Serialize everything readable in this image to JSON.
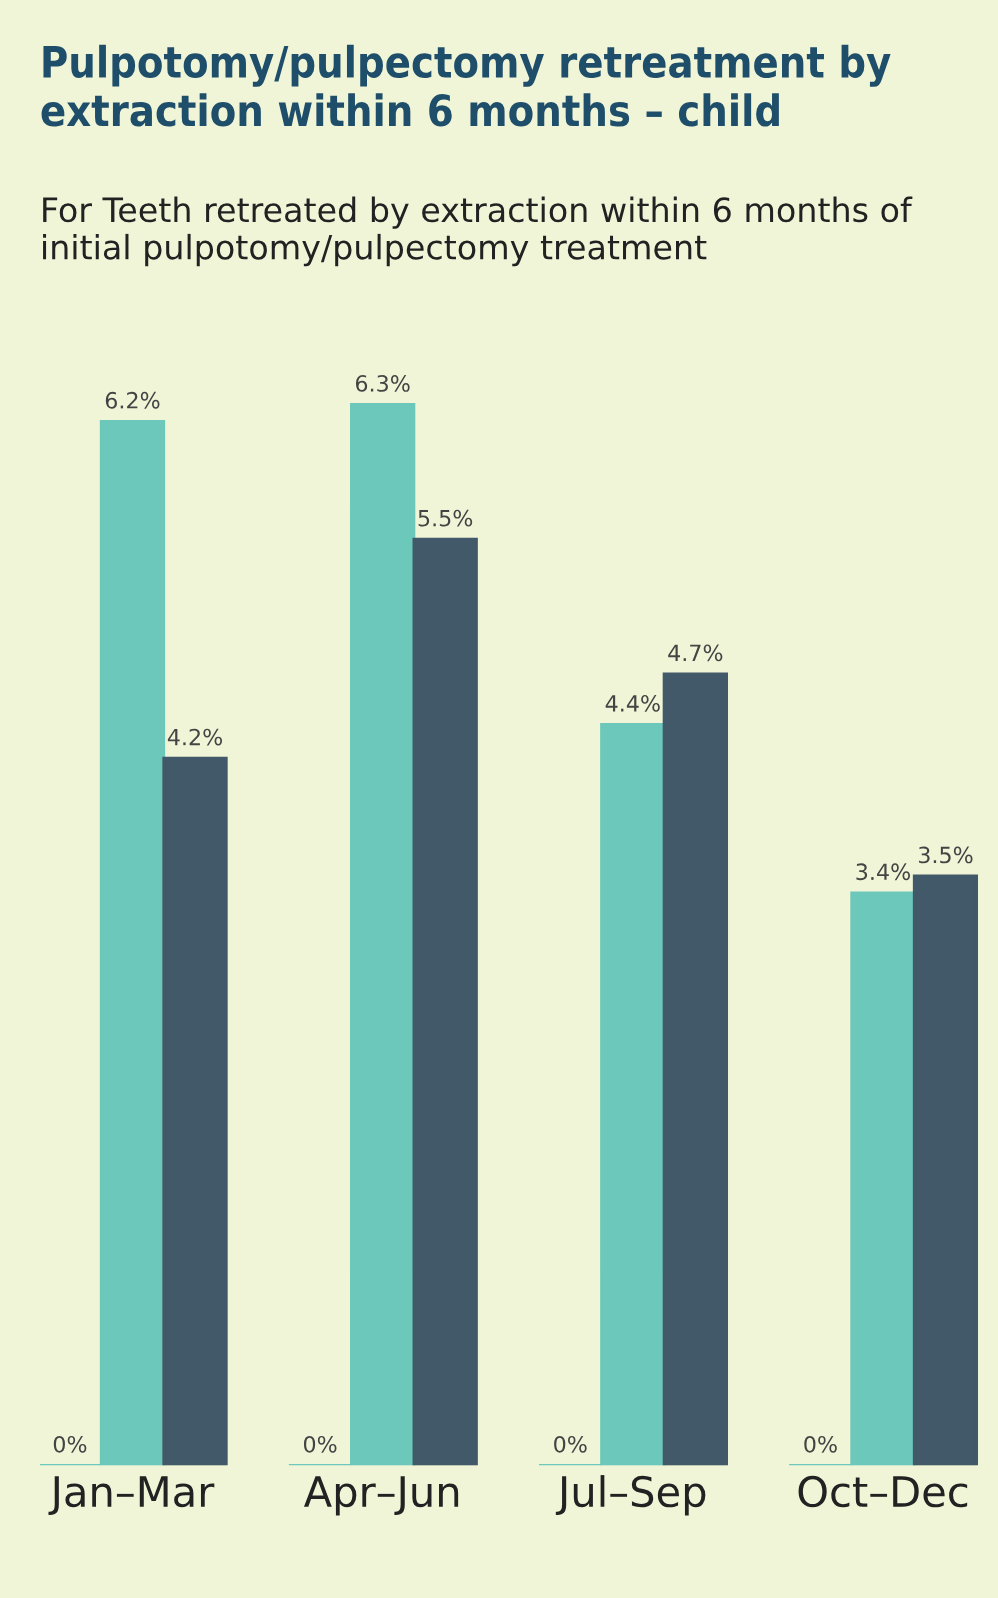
{
  "chart_data": {
    "type": "bar",
    "title": "Pulpotomy/pulpectomy retreatment by extraction within 6 months – child",
    "subtitle": "For Teeth retreated by extraction within 6 months of initial pulpotomy/pulpectomy treatment",
    "categories": [
      "Jan–Mar",
      "Apr–Jun",
      "Jul–Sep",
      "Oct–Dec"
    ],
    "series": [
      {
        "color": "#6cc8bb",
        "values": [
          0,
          0,
          0,
          0
        ],
        "value_labels": [
          "0%",
          "0%",
          "0%",
          "0%"
        ]
      },
      {
        "color": "#6cc8bb",
        "values": [
          6.2,
          6.3,
          4.4,
          3.4
        ],
        "value_labels": [
          "6.2%",
          "6.3%",
          "4.4%",
          "3.4%"
        ]
      },
      {
        "color": "#42596a",
        "values": [
          4.2,
          5.5,
          4.7,
          3.5
        ],
        "value_labels": [
          "4.2%",
          "5.5%",
          "4.7%",
          "3.5%"
        ]
      }
    ],
    "tick_labels": "x",
    "grid": false,
    "legend": false
  }
}
